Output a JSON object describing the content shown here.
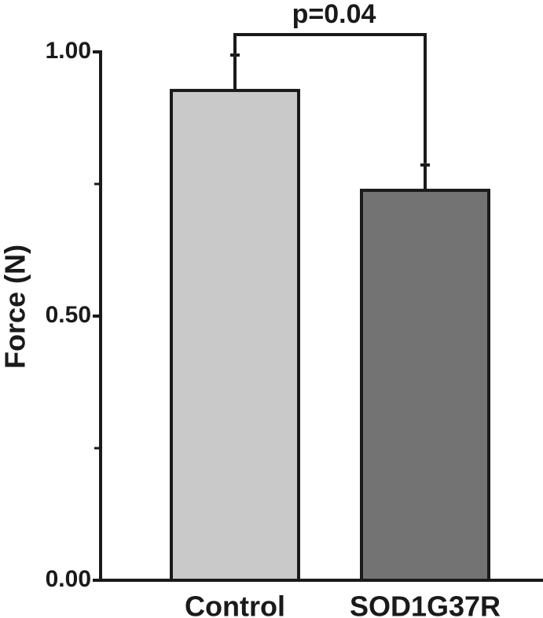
{
  "chart_data": {
    "type": "bar",
    "ylabel": "Force (N)",
    "categories": [
      "Control",
      "SOD1G37R"
    ],
    "values": [
      0.927,
      0.738
    ],
    "errors": [
      0.067,
      0.048
    ],
    "colors": [
      "#c8c9c8",
      "#737373"
    ],
    "ylim": [
      0,
      1
    ],
    "yticks": [
      {
        "value": 0,
        "label": "0.00"
      },
      {
        "value": 0.5,
        "label": "0.50"
      },
      {
        "value": 1,
        "label": "1.00"
      }
    ],
    "yminorticks": [
      0.25,
      0.75
    ],
    "annotation": "p=0.04"
  }
}
